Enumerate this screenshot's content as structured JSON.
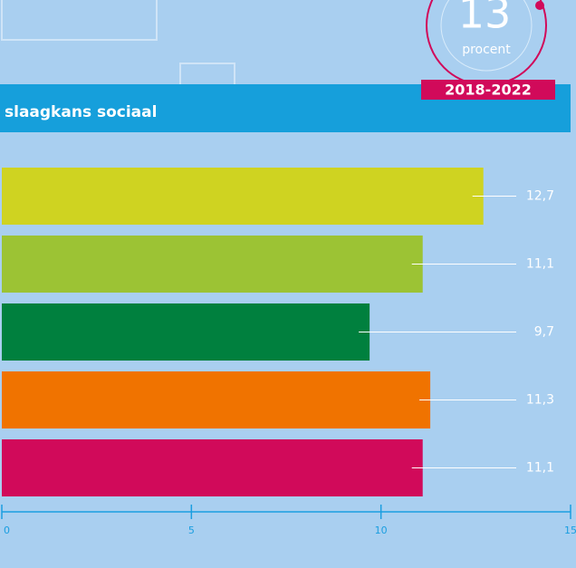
{
  "badge": {
    "number": 13,
    "unit": "procent",
    "period": "2018-2022"
  },
  "chart_data": {
    "type": "bar",
    "orientation": "horizontal",
    "title": "slaagkans sociaal",
    "categories": [
      null,
      null,
      null,
      null,
      null
    ],
    "values": [
      12.7,
      11.1,
      9.7,
      11.3,
      11.1
    ],
    "value_labels": [
      "12,7",
      "11,1",
      "9,7",
      "11,3",
      "11,1"
    ],
    "colors": [
      "#cfd321",
      "#9cc334",
      "#00803e",
      "#f07300",
      "#d10a5a"
    ],
    "xlim": [
      0,
      15
    ],
    "xticks": [
      0,
      5,
      10,
      15
    ]
  }
}
